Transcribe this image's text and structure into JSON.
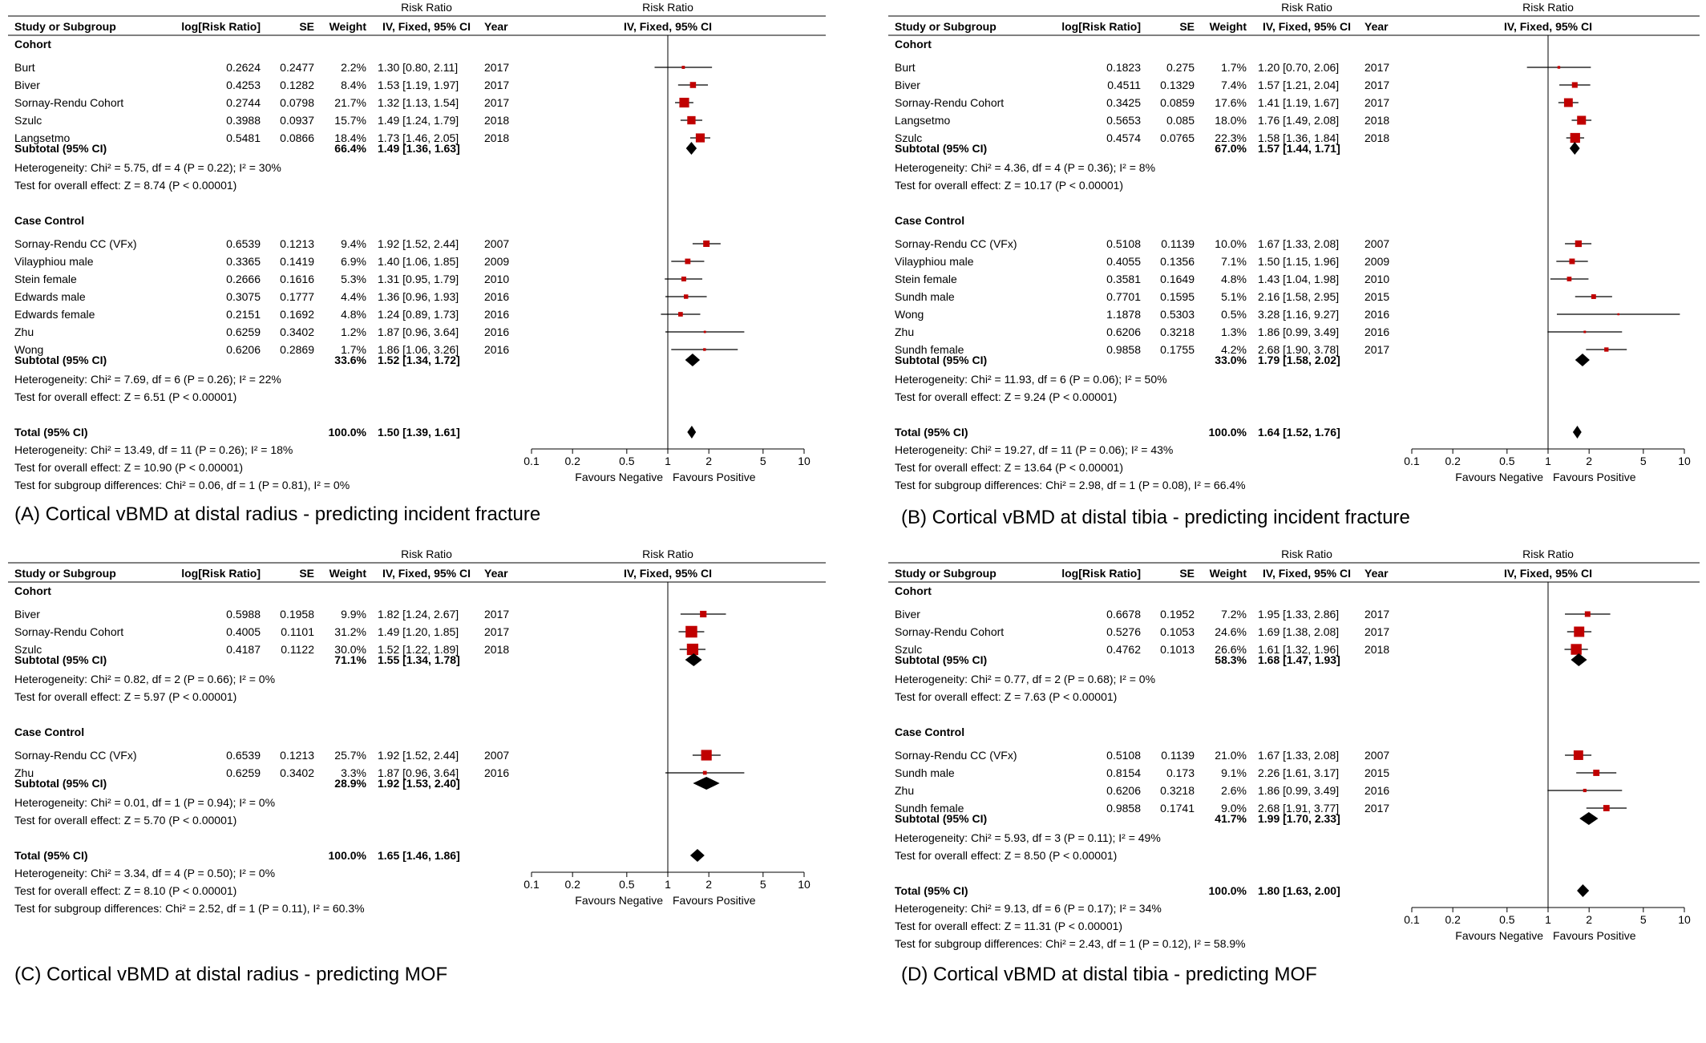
{
  "columns": {
    "study": "Study or Subgroup",
    "logrr": "log[Risk Ratio]",
    "se": "SE",
    "weight": "Weight",
    "rr_top": "Risk Ratio",
    "rr_bottom": "IV, Fixed, 95% CI",
    "year": "Year",
    "plot_top": "Risk Ratio",
    "plot_bottom": "IV, Fixed, 95% CI"
  },
  "axis": {
    "ticks": [
      "0.1",
      "0.2",
      "0.5",
      "1",
      "2",
      "5",
      "10"
    ],
    "favours_left": "Favours Negative",
    "favours_right": "Favours Positive"
  },
  "chart_data": [
    {
      "type": "forest",
      "caption": "(A) Cortical vBMD at distal radius - predicting incident fracture",
      "xscale": "log",
      "xlim": [
        0.1,
        10
      ],
      "groups": [
        {
          "name": "Cohort",
          "studies": [
            {
              "name": "Burt",
              "logrr": "0.2624",
              "se": "0.2477",
              "weight": "2.2%",
              "ci": "1.30 [0.80, 2.11]",
              "year": "2017",
              "rr": 1.3,
              "lo": 0.8,
              "hi": 2.11,
              "w": 2.2
            },
            {
              "name": "Biver",
              "logrr": "0.4253",
              "se": "0.1282",
              "weight": "8.4%",
              "ci": "1.53 [1.19, 1.97]",
              "year": "2017",
              "rr": 1.53,
              "lo": 1.19,
              "hi": 1.97,
              "w": 8.4
            },
            {
              "name": "Sornay-Rendu Cohort",
              "logrr": "0.2744",
              "se": "0.0798",
              "weight": "21.7%",
              "ci": "1.32 [1.13, 1.54]",
              "year": "2017",
              "rr": 1.32,
              "lo": 1.13,
              "hi": 1.54,
              "w": 21.7
            },
            {
              "name": "Szulc",
              "logrr": "0.3988",
              "se": "0.0937",
              "weight": "15.7%",
              "ci": "1.49 [1.24, 1.79]",
              "year": "2018",
              "rr": 1.49,
              "lo": 1.24,
              "hi": 1.79,
              "w": 15.7
            },
            {
              "name": "Langsetmo",
              "logrr": "0.5481",
              "se": "0.0866",
              "weight": "18.4%",
              "ci": "1.73 [1.46, 2.05]",
              "year": "2018",
              "rr": 1.73,
              "lo": 1.46,
              "hi": 2.05,
              "w": 18.4
            }
          ],
          "subtotal": {
            "label": "Subtotal (95% CI)",
            "weight": "66.4%",
            "ci": "1.49 [1.36, 1.63]",
            "rr": 1.49,
            "lo": 1.36,
            "hi": 1.63
          },
          "stats": [
            "Heterogeneity: Chi² = 5.75, df = 4 (P = 0.22); I² = 30%",
            "Test for overall effect: Z = 8.74 (P < 0.00001)"
          ]
        },
        {
          "name": "Case Control",
          "studies": [
            {
              "name": "Sornay-Rendu CC (VFx)",
              "logrr": "0.6539",
              "se": "0.1213",
              "weight": "9.4%",
              "ci": "1.92 [1.52, 2.44]",
              "year": "2007",
              "rr": 1.92,
              "lo": 1.52,
              "hi": 2.44,
              "w": 9.4
            },
            {
              "name": "Vilayphiou male",
              "logrr": "0.3365",
              "se": "0.1419",
              "weight": "6.9%",
              "ci": "1.40 [1.06, 1.85]",
              "year": "2009",
              "rr": 1.4,
              "lo": 1.06,
              "hi": 1.85,
              "w": 6.9
            },
            {
              "name": "Stein female",
              "logrr": "0.2666",
              "se": "0.1616",
              "weight": "5.3%",
              "ci": "1.31 [0.95, 1.79]",
              "year": "2010",
              "rr": 1.31,
              "lo": 0.95,
              "hi": 1.79,
              "w": 5.3
            },
            {
              "name": "Edwards male",
              "logrr": "0.3075",
              "se": "0.1777",
              "weight": "4.4%",
              "ci": "1.36 [0.96, 1.93]",
              "year": "2016",
              "rr": 1.36,
              "lo": 0.96,
              "hi": 1.93,
              "w": 4.4
            },
            {
              "name": "Edwards female",
              "logrr": "0.2151",
              "se": "0.1692",
              "weight": "4.8%",
              "ci": "1.24 [0.89, 1.73]",
              "year": "2016",
              "rr": 1.24,
              "lo": 0.89,
              "hi": 1.73,
              "w": 4.8
            },
            {
              "name": "Zhu",
              "logrr": "0.6259",
              "se": "0.3402",
              "weight": "1.2%",
              "ci": "1.87 [0.96, 3.64]",
              "year": "2016",
              "rr": 1.87,
              "lo": 0.96,
              "hi": 3.64,
              "w": 1.2
            },
            {
              "name": "Wong",
              "logrr": "0.6206",
              "se": "0.2869",
              "weight": "1.7%",
              "ci": "1.86 [1.06, 3.26]",
              "year": "2016",
              "rr": 1.86,
              "lo": 1.06,
              "hi": 3.26,
              "w": 1.7
            }
          ],
          "subtotal": {
            "label": "Subtotal (95% CI)",
            "weight": "33.6%",
            "ci": "1.52 [1.34, 1.72]",
            "rr": 1.52,
            "lo": 1.34,
            "hi": 1.72
          },
          "stats": [
            "Heterogeneity: Chi² = 7.69, df = 6 (P = 0.26); I² = 22%",
            "Test for overall effect: Z = 6.51 (P < 0.00001)"
          ]
        }
      ],
      "total": {
        "label": "Total (95% CI)",
        "weight": "100.0%",
        "ci": "1.50 [1.39, 1.61]",
        "rr": 1.5,
        "lo": 1.39,
        "hi": 1.61
      },
      "total_stats": [
        "Heterogeneity: Chi² = 13.49, df = 11 (P = 0.26); I² = 18%",
        "Test for overall effect: Z = 10.90 (P < 0.00001)",
        "Test for subgroup differences: Chi² = 0.06, df = 1 (P = 0.81), I² = 0%"
      ]
    },
    {
      "type": "forest",
      "caption": "(B) Cortical vBMD at distal tibia - predicting incident fracture",
      "xscale": "log",
      "xlim": [
        0.1,
        10
      ],
      "groups": [
        {
          "name": "Cohort",
          "studies": [
            {
              "name": "Burt",
              "logrr": "0.1823",
              "se": "0.275",
              "weight": "1.7%",
              "ci": "1.20 [0.70, 2.06]",
              "year": "2017",
              "rr": 1.2,
              "lo": 0.7,
              "hi": 2.06,
              "w": 1.7
            },
            {
              "name": "Biver",
              "logrr": "0.4511",
              "se": "0.1329",
              "weight": "7.4%",
              "ci": "1.57 [1.21, 2.04]",
              "year": "2017",
              "rr": 1.57,
              "lo": 1.21,
              "hi": 2.04,
              "w": 7.4
            },
            {
              "name": "Sornay-Rendu Cohort",
              "logrr": "0.3425",
              "se": "0.0859",
              "weight": "17.6%",
              "ci": "1.41 [1.19, 1.67]",
              "year": "2017",
              "rr": 1.41,
              "lo": 1.19,
              "hi": 1.67,
              "w": 17.6
            },
            {
              "name": "Langsetmo",
              "logrr": "0.5653",
              "se": "0.085",
              "weight": "18.0%",
              "ci": "1.76 [1.49, 2.08]",
              "year": "2018",
              "rr": 1.76,
              "lo": 1.49,
              "hi": 2.08,
              "w": 18.0
            },
            {
              "name": "Szulc",
              "logrr": "0.4574",
              "se": "0.0765",
              "weight": "22.3%",
              "ci": "1.58 [1.36, 1.84]",
              "year": "2018",
              "rr": 1.58,
              "lo": 1.36,
              "hi": 1.84,
              "w": 22.3
            }
          ],
          "subtotal": {
            "label": "Subtotal (95% CI)",
            "weight": "67.0%",
            "ci": "1.57 [1.44, 1.71]",
            "rr": 1.57,
            "lo": 1.44,
            "hi": 1.71
          },
          "stats": [
            "Heterogeneity: Chi² = 4.36, df = 4 (P = 0.36); I² = 8%",
            "Test for overall effect: Z = 10.17 (P < 0.00001)"
          ]
        },
        {
          "name": "Case Control",
          "studies": [
            {
              "name": "Sornay-Rendu CC (VFx)",
              "logrr": "0.5108",
              "se": "0.1139",
              "weight": "10.0%",
              "ci": "1.67 [1.33, 2.08]",
              "year": "2007",
              "rr": 1.67,
              "lo": 1.33,
              "hi": 2.08,
              "w": 10.0
            },
            {
              "name": "Vilayphiou male",
              "logrr": "0.4055",
              "se": "0.1356",
              "weight": "7.1%",
              "ci": "1.50 [1.15, 1.96]",
              "year": "2009",
              "rr": 1.5,
              "lo": 1.15,
              "hi": 1.96,
              "w": 7.1
            },
            {
              "name": "Stein female",
              "logrr": "0.3581",
              "se": "0.1649",
              "weight": "4.8%",
              "ci": "1.43 [1.04, 1.98]",
              "year": "2010",
              "rr": 1.43,
              "lo": 1.04,
              "hi": 1.98,
              "w": 4.8
            },
            {
              "name": "Sundh male",
              "logrr": "0.7701",
              "se": "0.1595",
              "weight": "5.1%",
              "ci": "2.16 [1.58, 2.95]",
              "year": "2015",
              "rr": 2.16,
              "lo": 1.58,
              "hi": 2.95,
              "w": 5.1
            },
            {
              "name": "Wong",
              "logrr": "1.1878",
              "se": "0.5303",
              "weight": "0.5%",
              "ci": "3.28 [1.16, 9.27]",
              "year": "2016",
              "rr": 3.28,
              "lo": 1.16,
              "hi": 9.27,
              "w": 0.5
            },
            {
              "name": "Zhu",
              "logrr": "0.6206",
              "se": "0.3218",
              "weight": "1.3%",
              "ci": "1.86 [0.99, 3.49]",
              "year": "2016",
              "rr": 1.86,
              "lo": 0.99,
              "hi": 3.49,
              "w": 1.3
            },
            {
              "name": "Sundh female",
              "logrr": "0.9858",
              "se": "0.1755",
              "weight": "4.2%",
              "ci": "2.68 [1.90, 3.78]",
              "year": "2017",
              "rr": 2.68,
              "lo": 1.9,
              "hi": 3.78,
              "w": 4.2
            }
          ],
          "subtotal": {
            "label": "Subtotal (95% CI)",
            "weight": "33.0%",
            "ci": "1.79 [1.58, 2.02]",
            "rr": 1.79,
            "lo": 1.58,
            "hi": 2.02
          },
          "stats": [
            "Heterogeneity: Chi² = 11.93, df = 6 (P = 0.06); I² = 50%",
            "Test for overall effect: Z = 9.24 (P < 0.00001)"
          ]
        }
      ],
      "total": {
        "label": "Total (95% CI)",
        "weight": "100.0%",
        "ci": "1.64 [1.52, 1.76]",
        "rr": 1.64,
        "lo": 1.52,
        "hi": 1.76
      },
      "total_stats": [
        "Heterogeneity: Chi² = 19.27, df = 11 (P = 0.06); I² = 43%",
        "Test for overall effect: Z = 13.64 (P < 0.00001)",
        "Test for subgroup differences: Chi² = 2.98, df = 1 (P = 0.08), I² = 66.4%"
      ]
    },
    {
      "type": "forest",
      "caption": "(C) Cortical vBMD at distal radius - predicting MOF",
      "xscale": "log",
      "xlim": [
        0.1,
        10
      ],
      "groups": [
        {
          "name": "Cohort",
          "studies": [
            {
              "name": "Biver",
              "logrr": "0.5988",
              "se": "0.1958",
              "weight": "9.9%",
              "ci": "1.82 [1.24, 2.67]",
              "year": "2017",
              "rr": 1.82,
              "lo": 1.24,
              "hi": 2.67,
              "w": 9.9
            },
            {
              "name": "Sornay-Rendu Cohort",
              "logrr": "0.4005",
              "se": "0.1101",
              "weight": "31.2%",
              "ci": "1.49 [1.20, 1.85]",
              "year": "2017",
              "rr": 1.49,
              "lo": 1.2,
              "hi": 1.85,
              "w": 31.2
            },
            {
              "name": "Szulc",
              "logrr": "0.4187",
              "se": "0.1122",
              "weight": "30.0%",
              "ci": "1.52 [1.22, 1.89]",
              "year": "2018",
              "rr": 1.52,
              "lo": 1.22,
              "hi": 1.89,
              "w": 30.0
            }
          ],
          "subtotal": {
            "label": "Subtotal (95% CI)",
            "weight": "71.1%",
            "ci": "1.55 [1.34, 1.78]",
            "rr": 1.55,
            "lo": 1.34,
            "hi": 1.78
          },
          "stats": [
            "Heterogeneity: Chi² = 0.82, df = 2 (P = 0.66); I² = 0%",
            "Test for overall effect: Z = 5.97 (P < 0.00001)"
          ]
        },
        {
          "name": "Case Control",
          "studies": [
            {
              "name": "Sornay-Rendu CC (VFx)",
              "logrr": "0.6539",
              "se": "0.1213",
              "weight": "25.7%",
              "ci": "1.92 [1.52, 2.44]",
              "year": "2007",
              "rr": 1.92,
              "lo": 1.52,
              "hi": 2.44,
              "w": 25.7
            },
            {
              "name": "Zhu",
              "logrr": "0.6259",
              "se": "0.3402",
              "weight": "3.3%",
              "ci": "1.87 [0.96, 3.64]",
              "year": "2016",
              "rr": 1.87,
              "lo": 0.96,
              "hi": 3.64,
              "w": 3.3
            }
          ],
          "subtotal": {
            "label": "Subtotal (95% CI)",
            "weight": "28.9%",
            "ci": "1.92 [1.53, 2.40]",
            "rr": 1.92,
            "lo": 1.53,
            "hi": 2.4
          },
          "stats": [
            "Heterogeneity: Chi² = 0.01, df = 1 (P = 0.94); I² = 0%",
            "Test for overall effect: Z = 5.70 (P < 0.00001)"
          ]
        }
      ],
      "total": {
        "label": "Total (95% CI)",
        "weight": "100.0%",
        "ci": "1.65 [1.46, 1.86]",
        "rr": 1.65,
        "lo": 1.46,
        "hi": 1.86
      },
      "total_stats": [
        "Heterogeneity: Chi² = 3.34, df = 4 (P = 0.50); I² = 0%",
        "Test for overall effect: Z = 8.10 (P < 0.00001)",
        "Test for subgroup differences: Chi² = 2.52, df = 1 (P = 0.11), I² = 60.3%"
      ]
    },
    {
      "type": "forest",
      "caption": "(D) Cortical vBMD at distal tibia - predicting MOF",
      "xscale": "log",
      "xlim": [
        0.1,
        10
      ],
      "groups": [
        {
          "name": "Cohort",
          "studies": [
            {
              "name": "Biver",
              "logrr": "0.6678",
              "se": "0.1952",
              "weight": "7.2%",
              "ci": "1.95 [1.33, 2.86]",
              "year": "2017",
              "rr": 1.95,
              "lo": 1.33,
              "hi": 2.86,
              "w": 7.2
            },
            {
              "name": "Sornay-Rendu Cohort",
              "logrr": "0.5276",
              "se": "0.1053",
              "weight": "24.6%",
              "ci": "1.69 [1.38, 2.08]",
              "year": "2017",
              "rr": 1.69,
              "lo": 1.38,
              "hi": 2.08,
              "w": 24.6
            },
            {
              "name": "Szulc",
              "logrr": "0.4762",
              "se": "0.1013",
              "weight": "26.6%",
              "ci": "1.61 [1.32, 1.96]",
              "year": "2018",
              "rr": 1.61,
              "lo": 1.32,
              "hi": 1.96,
              "w": 26.6
            }
          ],
          "subtotal": {
            "label": "Subtotal (95% CI)",
            "weight": "58.3%",
            "ci": "1.68 [1.47, 1.93]",
            "rr": 1.68,
            "lo": 1.47,
            "hi": 1.93
          },
          "stats": [
            "Heterogeneity: Chi² = 0.77, df = 2 (P = 0.68); I² = 0%",
            "Test for overall effect: Z = 7.63 (P < 0.00001)"
          ]
        },
        {
          "name": "Case Control",
          "studies": [
            {
              "name": "Sornay-Rendu CC (VFx)",
              "logrr": "0.5108",
              "se": "0.1139",
              "weight": "21.0%",
              "ci": "1.67 [1.33, 2.08]",
              "year": "2007",
              "rr": 1.67,
              "lo": 1.33,
              "hi": 2.08,
              "w": 21.0
            },
            {
              "name": "Sundh male",
              "logrr": "0.8154",
              "se": "0.173",
              "weight": "9.1%",
              "ci": "2.26 [1.61, 3.17]",
              "year": "2015",
              "rr": 2.26,
              "lo": 1.61,
              "hi": 3.17,
              "w": 9.1
            },
            {
              "name": "Zhu",
              "logrr": "0.6206",
              "se": "0.3218",
              "weight": "2.6%",
              "ci": "1.86 [0.99, 3.49]",
              "year": "2016",
              "rr": 1.86,
              "lo": 0.99,
              "hi": 3.49,
              "w": 2.6
            },
            {
              "name": "Sundh female",
              "logrr": "0.9858",
              "se": "0.1741",
              "weight": "9.0%",
              "ci": "2.68 [1.91, 3.77]",
              "year": "2017",
              "rr": 2.68,
              "lo": 1.91,
              "hi": 3.77,
              "w": 9.0
            }
          ],
          "subtotal": {
            "label": "Subtotal (95% CI)",
            "weight": "41.7%",
            "ci": "1.99 [1.70, 2.33]",
            "rr": 1.99,
            "lo": 1.7,
            "hi": 2.33
          },
          "stats": [
            "Heterogeneity: Chi² = 5.93, df = 3 (P = 0.11); I² = 49%",
            "Test for overall effect: Z = 8.50 (P < 0.00001)"
          ]
        }
      ],
      "total": {
        "label": "Total (95% CI)",
        "weight": "100.0%",
        "ci": "1.80 [1.63, 2.00]",
        "rr": 1.8,
        "lo": 1.63,
        "hi": 2.0
      },
      "total_stats": [
        "Heterogeneity: Chi² = 9.13, df = 6 (P = 0.17); I² = 34%",
        "Test for overall effect: Z = 11.31 (P < 0.00001)",
        "Test for subgroup differences: Chi² = 2.43, df = 1 (P = 0.12), I² = 58.9%"
      ]
    }
  ],
  "colors": {
    "study_marker": "#c00000",
    "summary_diamond": "#000000",
    "ci_line": "#000000"
  }
}
